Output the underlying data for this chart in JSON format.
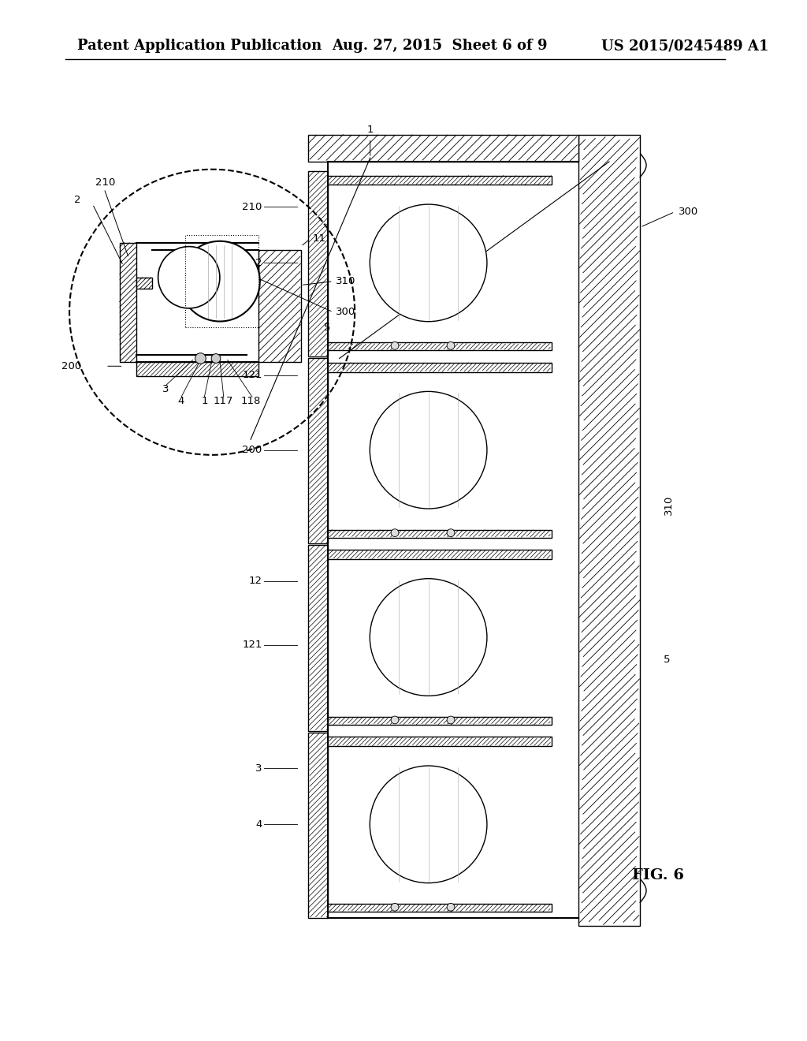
{
  "title_left": "Patent Application Publication",
  "title_mid": "Aug. 27, 2015  Sheet 6 of 9",
  "title_right": "US 2015/0245489 A1",
  "fig_label": "FIG. 6",
  "bg_color": "#ffffff",
  "line_color": "#000000",
  "hatch_color": "#000000",
  "title_fontsize": 13,
  "fig_label_fontsize": 14
}
